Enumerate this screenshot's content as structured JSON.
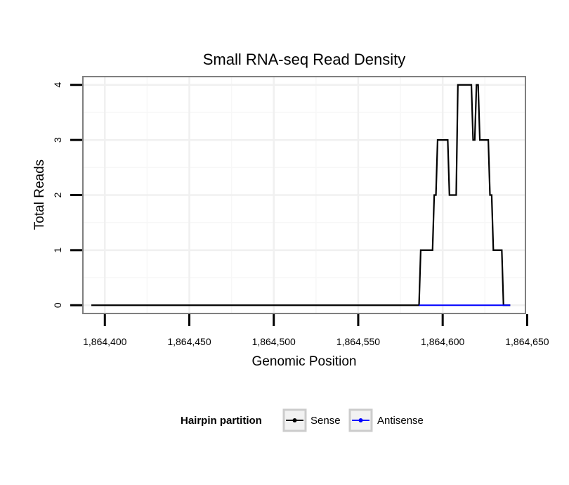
{
  "chart_data": {
    "type": "line",
    "title": "Small RNA-seq Read Density",
    "xlabel": "Genomic Position",
    "ylabel": "Total Reads",
    "xlim": [
      1864387,
      1864649
    ],
    "ylim": [
      -0.15,
      4.15
    ],
    "grid": true,
    "x_ticks": [
      1864400,
      1864450,
      1864500,
      1864550,
      1864600,
      1864650
    ],
    "x_tick_labels": [
      "1,864,400",
      "1,864,450",
      "1,864,500",
      "1,864,550",
      "1,864,600",
      "1,864,650"
    ],
    "y_ticks": [
      0,
      1,
      2,
      3,
      4
    ],
    "y_tick_labels": [
      "0",
      "1",
      "2",
      "3",
      "4"
    ],
    "legend": {
      "title": "Hairpin partition",
      "position": "bottom",
      "entries": [
        "Sense",
        "Antisense"
      ]
    },
    "series": [
      {
        "name": "Sense",
        "color": "#000000",
        "x": [
          1864392,
          1864586,
          1864587,
          1864594,
          1864595,
          1864596,
          1864597,
          1864603,
          1864604,
          1864608,
          1864609,
          1864610,
          1864611,
          1864617,
          1864618,
          1864619,
          1864620,
          1864621,
          1864622,
          1864627,
          1864628,
          1864629,
          1864630,
          1864632,
          1864633,
          1864635,
          1864636,
          1864640
        ],
        "y": [
          0,
          0,
          1,
          1,
          2,
          2,
          3,
          3,
          2,
          2,
          4,
          4,
          4,
          4,
          3,
          3,
          4,
          4,
          3,
          3,
          2,
          2,
          1,
          1,
          1,
          1,
          0,
          0
        ]
      },
      {
        "name": "Antisense",
        "color": "#0000ff",
        "x": [
          1864586,
          1864640
        ],
        "y": [
          0,
          0
        ]
      }
    ]
  }
}
